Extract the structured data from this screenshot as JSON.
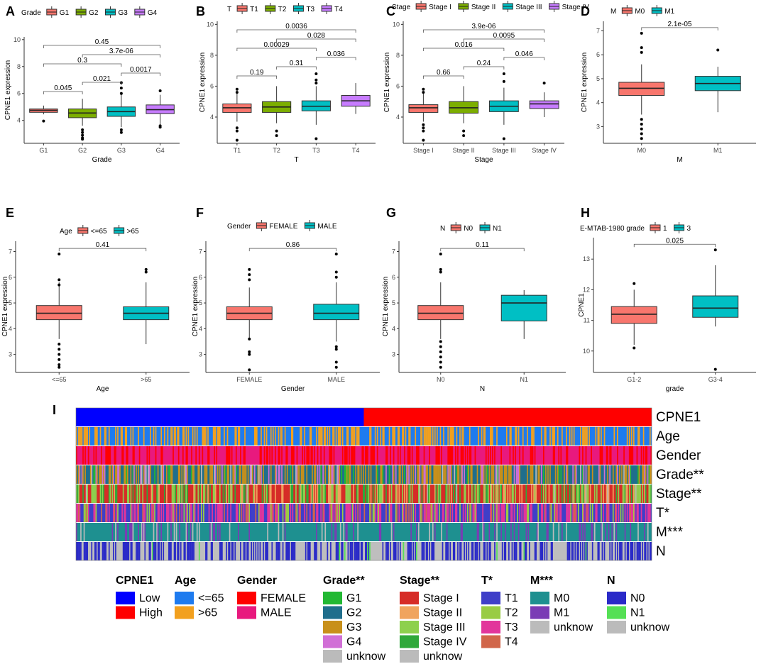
{
  "chart_data": [
    {
      "id": "A",
      "type": "boxplot",
      "title": "",
      "xlabel": "Grade",
      "ylabel": "CPNE1  expression",
      "legend_title": "Grade",
      "ylim": [
        2.3,
        10.2
      ],
      "yticks": [
        4,
        6,
        8,
        10
      ],
      "categories": [
        "G1",
        "G2",
        "G3",
        "G4"
      ],
      "colors": [
        "#F8766D",
        "#7CAE00",
        "#00BFC4",
        "#C77CFF"
      ],
      "boxes": [
        {
          "q1": 4.6,
          "med": 4.75,
          "q3": 4.85,
          "lo": 4.45,
          "hi": 5.1,
          "out": [
            3.95
          ]
        },
        {
          "q1": 4.2,
          "med": 4.55,
          "q3": 4.85,
          "lo": 3.6,
          "hi": 5.6,
          "out": [
            3.3,
            3.1,
            2.9,
            2.7,
            2.6
          ]
        },
        {
          "q1": 4.3,
          "med": 4.65,
          "q3": 5.0,
          "lo": 3.5,
          "hi": 6.1,
          "out": [
            6.8,
            6.4,
            6.0,
            3.3,
            3.1
          ]
        },
        {
          "q1": 4.5,
          "med": 4.8,
          "q3": 5.15,
          "lo": 3.7,
          "hi": 5.9,
          "out": [
            6.2,
            3.6,
            3.5
          ]
        }
      ],
      "pvalues": [
        {
          "a": 0,
          "b": 1,
          "p": "0.045"
        },
        {
          "a": 0,
          "b": 2,
          "p": "0.3"
        },
        {
          "a": 0,
          "b": 3,
          "p": "0.45"
        },
        {
          "a": 1,
          "b": 2,
          "p": "0.021"
        },
        {
          "a": 1,
          "b": 3,
          "p": "3.7e-06"
        },
        {
          "a": 2,
          "b": 3,
          "p": "0.0017"
        }
      ]
    },
    {
      "id": "B",
      "type": "boxplot",
      "title": "",
      "xlabel": "T",
      "ylabel": "CPNE1  expression",
      "legend_title": "T",
      "ylim": [
        2.3,
        10.2
      ],
      "yticks": [
        4,
        6,
        8,
        10
      ],
      "categories": [
        "T1",
        "T2",
        "T3",
        "T4"
      ],
      "colors": [
        "#F8766D",
        "#7CAE00",
        "#00BFC4",
        "#C77CFF"
      ],
      "boxes": [
        {
          "q1": 4.3,
          "med": 4.6,
          "q3": 4.85,
          "lo": 3.7,
          "hi": 5.6,
          "out": [
            5.8,
            5.6,
            3.3,
            3.1,
            2.5
          ]
        },
        {
          "q1": 4.3,
          "med": 4.65,
          "q3": 5.0,
          "lo": 3.6,
          "hi": 6.0,
          "out": [
            3.1,
            2.8
          ]
        },
        {
          "q1": 4.4,
          "med": 4.7,
          "q3": 5.05,
          "lo": 3.5,
          "hi": 6.0,
          "out": [
            6.8,
            6.4,
            6.2,
            2.6
          ]
        },
        {
          "q1": 4.7,
          "med": 5.05,
          "q3": 5.4,
          "lo": 4.2,
          "hi": 6.2,
          "out": []
        }
      ],
      "pvalues": [
        {
          "a": 0,
          "b": 1,
          "p": "0.19"
        },
        {
          "a": 0,
          "b": 2,
          "p": "0.00029"
        },
        {
          "a": 0,
          "b": 3,
          "p": "0.0036"
        },
        {
          "a": 1,
          "b": 2,
          "p": "0.31"
        },
        {
          "a": 1,
          "b": 3,
          "p": "0.028"
        },
        {
          "a": 2,
          "b": 3,
          "p": "0.036"
        }
      ]
    },
    {
      "id": "C",
      "type": "boxplot",
      "title": "",
      "xlabel": "Stage",
      "ylabel": "CPNE1  expression",
      "legend_title": "Stage",
      "ylim": [
        2.3,
        10.2
      ],
      "yticks": [
        4,
        6,
        8,
        10
      ],
      "categories": [
        "Stage I",
        "Stage II",
        "Stage III",
        "Stage IV"
      ],
      "colors": [
        "#F8766D",
        "#7CAE00",
        "#00BFC4",
        "#C77CFF"
      ],
      "boxes": [
        {
          "q1": 4.3,
          "med": 4.6,
          "q3": 4.8,
          "lo": 3.7,
          "hi": 5.6,
          "out": [
            5.8,
            5.6,
            3.5,
            3.3,
            3.1,
            2.5
          ]
        },
        {
          "q1": 4.25,
          "med": 4.6,
          "q3": 5.0,
          "lo": 3.6,
          "hi": 6.0,
          "out": [
            3.1,
            2.8
          ]
        },
        {
          "q1": 4.35,
          "med": 4.7,
          "q3": 5.05,
          "lo": 3.5,
          "hi": 5.9,
          "out": [
            6.8,
            6.3,
            2.6
          ]
        },
        {
          "q1": 4.55,
          "med": 4.85,
          "q3": 5.05,
          "lo": 4.0,
          "hi": 5.6,
          "out": [
            6.2
          ]
        }
      ],
      "pvalues": [
        {
          "a": 0,
          "b": 1,
          "p": "0.66"
        },
        {
          "a": 0,
          "b": 2,
          "p": "0.016"
        },
        {
          "a": 0,
          "b": 3,
          "p": "3.9e-06"
        },
        {
          "a": 1,
          "b": 2,
          "p": "0.24"
        },
        {
          "a": 1,
          "b": 3,
          "p": "0.0095"
        },
        {
          "a": 2,
          "b": 3,
          "p": "0.046"
        }
      ]
    },
    {
      "id": "D",
      "type": "boxplot",
      "title": "",
      "xlabel": "M",
      "ylabel": "CPNE1  expression",
      "legend_title": "M",
      "ylim": [
        2.3,
        7.4
      ],
      "yticks": [
        3,
        4,
        5,
        6,
        7
      ],
      "categories": [
        "M0",
        "M1"
      ],
      "colors": [
        "#F8766D",
        "#00BFC4"
      ],
      "boxes": [
        {
          "q1": 4.3,
          "med": 4.6,
          "q3": 4.85,
          "lo": 3.5,
          "hi": 5.6,
          "out": [
            6.9,
            6.3,
            6.1,
            3.3,
            3.1,
            2.9,
            2.7,
            2.5
          ]
        },
        {
          "q1": 4.5,
          "med": 4.8,
          "q3": 5.1,
          "lo": 3.6,
          "hi": 5.5,
          "out": [
            6.2
          ]
        }
      ],
      "pvalues": [
        {
          "a": 0,
          "b": 1,
          "p": "2.1e-05"
        }
      ]
    },
    {
      "id": "E",
      "type": "boxplot",
      "title": "",
      "xlabel": "Age",
      "ylabel": "CPNE1  expression",
      "legend_title": "Age",
      "ylim": [
        2.3,
        7.4
      ],
      "yticks": [
        3,
        4,
        5,
        6,
        7
      ],
      "categories": [
        "<=65",
        ">65"
      ],
      "colors": [
        "#F8766D",
        "#00BFC4"
      ],
      "boxes": [
        {
          "q1": 4.35,
          "med": 4.6,
          "q3": 4.9,
          "lo": 3.6,
          "hi": 5.8,
          "out": [
            6.9,
            5.9,
            5.7,
            3.4,
            3.2,
            3.0,
            2.8,
            2.6,
            2.5
          ]
        },
        {
          "q1": 4.35,
          "med": 4.6,
          "q3": 4.85,
          "lo": 3.4,
          "hi": 5.8,
          "out": [
            6.3,
            6.2
          ]
        }
      ],
      "pvalues": [
        {
          "a": 0,
          "b": 1,
          "p": "0.41"
        }
      ]
    },
    {
      "id": "F",
      "type": "boxplot",
      "title": "",
      "xlabel": "Gender",
      "ylabel": "CPNE1  expression",
      "legend_title": "Gender",
      "ylim": [
        2.3,
        7.4
      ],
      "yticks": [
        3,
        4,
        5,
        6,
        7
      ],
      "categories": [
        "FEMALE",
        "MALE"
      ],
      "colors": [
        "#F8766D",
        "#00BFC4"
      ],
      "boxes": [
        {
          "q1": 4.35,
          "med": 4.6,
          "q3": 4.85,
          "lo": 3.6,
          "hi": 5.6,
          "out": [
            6.3,
            6.1,
            5.9,
            3.6,
            3.1,
            3.0,
            2.4
          ]
        },
        {
          "q1": 4.35,
          "med": 4.6,
          "q3": 4.95,
          "lo": 3.5,
          "hi": 5.8,
          "out": [
            6.9,
            6.2,
            6.0,
            3.3,
            3.2,
            2.7,
            2.5
          ]
        }
      ],
      "pvalues": [
        {
          "a": 0,
          "b": 1,
          "p": "0.86"
        }
      ]
    },
    {
      "id": "G",
      "type": "boxplot",
      "title": "",
      "xlabel": "N",
      "ylabel": "CPNE1  expression",
      "legend_title": "N",
      "ylim": [
        2.3,
        7.4
      ],
      "yticks": [
        3,
        4,
        5,
        6,
        7
      ],
      "categories": [
        "N0",
        "N1"
      ],
      "colors": [
        "#F8766D",
        "#00BFC4"
      ],
      "boxes": [
        {
          "q1": 4.35,
          "med": 4.6,
          "q3": 4.9,
          "lo": 3.6,
          "hi": 5.8,
          "out": [
            6.9,
            6.3,
            6.2,
            3.5,
            3.3,
            3.1,
            2.9,
            2.7,
            2.5
          ]
        },
        {
          "q1": 4.3,
          "med": 5.0,
          "q3": 5.3,
          "lo": 3.6,
          "hi": 5.5,
          "out": []
        }
      ],
      "pvalues": [
        {
          "a": 0,
          "b": 1,
          "p": "0.11"
        }
      ]
    },
    {
      "id": "H",
      "type": "boxplot",
      "title": "",
      "xlabel": "grade",
      "ylabel": "CPNE1",
      "legend_title": "E-MTAB-1980  grade",
      "legend_labels": [
        "1",
        "3"
      ],
      "ylim": [
        9.3,
        13.7
      ],
      "yticks": [
        10,
        11,
        12,
        13
      ],
      "categories": [
        "G1-2",
        "G3-4"
      ],
      "colors": [
        "#F8766D",
        "#00BFC4"
      ],
      "boxes": [
        {
          "q1": 10.9,
          "med": 11.2,
          "q3": 11.45,
          "lo": 10.2,
          "hi": 12.0,
          "out": [
            12.2,
            10.1
          ]
        },
        {
          "q1": 11.1,
          "med": 11.4,
          "q3": 11.8,
          "lo": 10.8,
          "hi": 12.8,
          "out": [
            13.3,
            9.4
          ]
        }
      ],
      "pvalues": [
        {
          "a": 0,
          "b": 1,
          "p": "0.025"
        }
      ]
    },
    {
      "id": "I",
      "type": "heatmap",
      "rows": [
        "CPNE1",
        "Age",
        "Gender",
        "Grade**",
        "Stage**",
        "T*",
        "M***",
        "N"
      ],
      "n_samples": 530,
      "row_distributions": [
        {
          "split": 0.5,
          "colors": [
            "#0000FF",
            "#FF0000"
          ]
        },
        {
          "colors": [
            "#1E7BEF",
            "#F2A01E"
          ],
          "weights": [
            0.62,
            0.38
          ]
        },
        {
          "colors": [
            "#FF0000",
            "#E8197E"
          ],
          "weights": [
            0.35,
            0.65
          ]
        },
        {
          "colors": [
            "#1F6E8C",
            "#C8901A",
            "#D16FD6",
            "#BBBBBB",
            "#22B833"
          ],
          "weights": [
            0.42,
            0.36,
            0.12,
            0.04,
            0.06
          ]
        },
        {
          "colors": [
            "#D62C27",
            "#F0A45E",
            "#8DD04E",
            "#2FA83A",
            "#BBBBBB"
          ],
          "weights": [
            0.5,
            0.12,
            0.22,
            0.14,
            0.02
          ]
        },
        {
          "colors": [
            "#3F3FC8",
            "#99CC44",
            "#E2359B",
            "#D1664A"
          ],
          "weights": [
            0.5,
            0.14,
            0.3,
            0.06
          ]
        },
        {
          "colors": [
            "#1E9090",
            "#7A3CB5",
            "#BBBBBB"
          ],
          "weights": [
            0.8,
            0.14,
            0.06
          ]
        },
        {
          "colors": [
            "#2A2AC8",
            "#BEBEBE",
            "#55E055"
          ],
          "weights": [
            0.46,
            0.52,
            0.02
          ]
        }
      ],
      "legend": [
        {
          "title": "CPNE1",
          "items": [
            [
              "Low",
              "#0000FF"
            ],
            [
              "High",
              "#FF0000"
            ]
          ]
        },
        {
          "title": "Age",
          "items": [
            [
              "<=65",
              "#1E7BEF"
            ],
            [
              ">65",
              "#F2A01E"
            ]
          ]
        },
        {
          "title": "Gender",
          "items": [
            [
              "FEMALE",
              "#FF0000"
            ],
            [
              "MALE",
              "#E8197E"
            ]
          ]
        },
        {
          "title": "Grade**",
          "items": [
            [
              "G1",
              "#22B833"
            ],
            [
              "G2",
              "#1F6E8C"
            ],
            [
              "G3",
              "#C8901A"
            ],
            [
              "G4",
              "#D16FD6"
            ],
            [
              "unknow",
              "#BBBBBB"
            ]
          ]
        },
        {
          "title": "Stage**",
          "items": [
            [
              "Stage I",
              "#D62C27"
            ],
            [
              "Stage II",
              "#F0A45E"
            ],
            [
              "Stage III",
              "#8DD04E"
            ],
            [
              "Stage IV",
              "#2FA83A"
            ],
            [
              "unknow",
              "#BBBBBB"
            ]
          ]
        },
        {
          "title": "T*",
          "items": [
            [
              "T1",
              "#3F3FC8"
            ],
            [
              "T2",
              "#99CC44"
            ],
            [
              "T3",
              "#E2359B"
            ],
            [
              "T4",
              "#D1664A"
            ]
          ]
        },
        {
          "title": "M***",
          "items": [
            [
              "M0",
              "#1E9090"
            ],
            [
              "M1",
              "#7A3CB5"
            ],
            [
              "unknow",
              "#BBBBBB"
            ]
          ]
        },
        {
          "title": "N",
          "items": [
            [
              "N0",
              "#2A2AC8"
            ],
            [
              "N1",
              "#55E055"
            ],
            [
              "unknow",
              "#BBBBBB"
            ]
          ]
        }
      ]
    }
  ]
}
